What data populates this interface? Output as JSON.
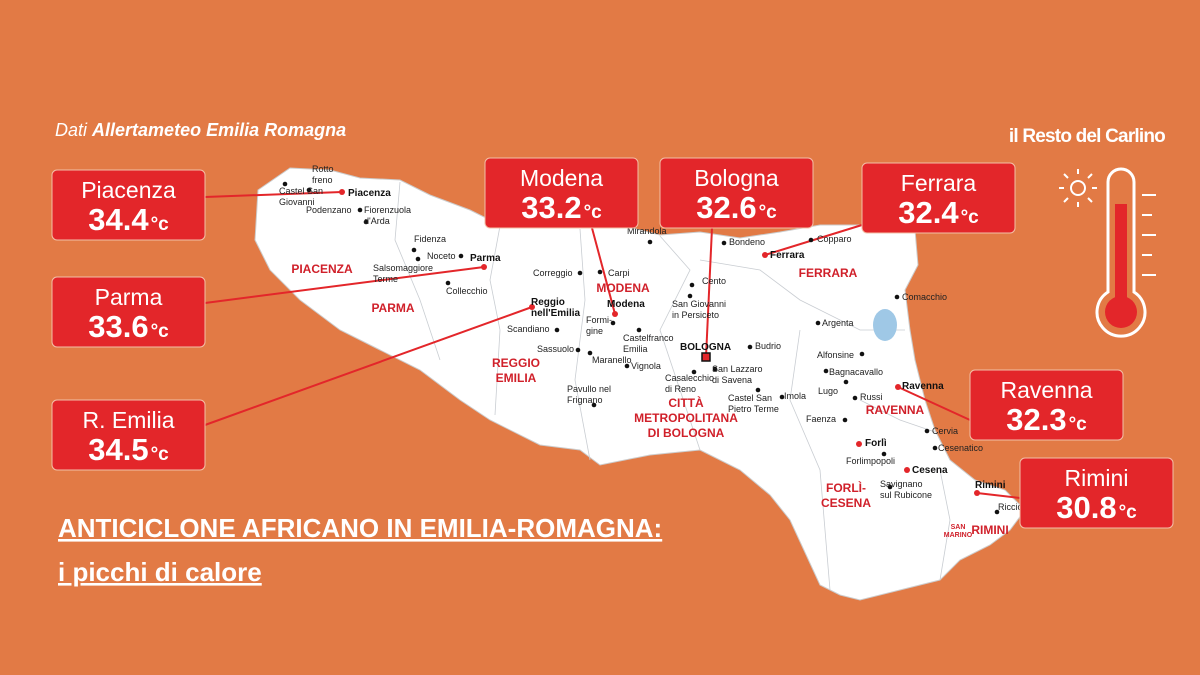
{
  "source": {
    "prefix": "Dati",
    "name": "Allertameteo Emilia Romagna"
  },
  "brand": "il Resto del Carlino",
  "headline": {
    "line1": "ANTICICLONE AFRICANO IN EMILIA-ROMAGNA:",
    "line2": "i picchi di calore"
  },
  "unit": "°c",
  "readings": [
    {
      "city": "Piacenza",
      "value": 34.4
    },
    {
      "city": "Parma",
      "value": 33.6
    },
    {
      "city": "R. Emilia",
      "value": 34.5
    },
    {
      "city": "Modena",
      "value": 33.2
    },
    {
      "city": "Bologna",
      "value": 32.6
    },
    {
      "city": "Ferrara",
      "value": 32.4
    },
    {
      "city": "Ravenna",
      "value": 32.3
    },
    {
      "city": "Rimini",
      "value": 30.8
    }
  ],
  "provinces": [
    {
      "lines": [
        "PIACENZA"
      ]
    },
    {
      "lines": [
        "PARMA"
      ]
    },
    {
      "lines": [
        "REGGIO",
        "EMILIA"
      ]
    },
    {
      "lines": [
        "MODENA"
      ]
    },
    {
      "lines": [
        "FERRARA"
      ]
    },
    {
      "lines": [
        "CITTÀ",
        "METROPOLITANA",
        "DI BOLOGNA"
      ]
    },
    {
      "lines": [
        "RAVENNA"
      ]
    },
    {
      "lines": [
        "FORLÌ-",
        "CESENA"
      ]
    },
    {
      "lines": [
        "RIMINI"
      ]
    },
    {
      "lines": [
        "SAN",
        "MARINO"
      ]
    }
  ],
  "towns": [
    {
      "lines": [
        "Rotto",
        "freno"
      ]
    },
    {
      "lines": [
        "Castel San",
        "Giovanni"
      ]
    },
    {
      "lines": [
        "Piacenza"
      ]
    },
    {
      "lines": [
        "Podenzano"
      ]
    },
    {
      "lines": [
        "Fiorenzuola",
        "d'Arda"
      ]
    },
    {
      "lines": [
        "Fidenza"
      ]
    },
    {
      "lines": [
        "Noceto"
      ]
    },
    {
      "lines": [
        "Salsomaggiore",
        "Terme"
      ]
    },
    {
      "lines": [
        "Parma"
      ]
    },
    {
      "lines": [
        "Collecchio"
      ]
    },
    {
      "lines": [
        "Correggio"
      ]
    },
    {
      "lines": [
        "Carpi"
      ]
    },
    {
      "lines": [
        "Mirandola"
      ]
    },
    {
      "lines": [
        "Bondeno"
      ]
    },
    {
      "lines": [
        "Copparo"
      ]
    },
    {
      "lines": [
        "Ferrara"
      ]
    },
    {
      "lines": [
        "Reggio",
        "nell'Emilia"
      ]
    },
    {
      "lines": [
        "Scandiano"
      ]
    },
    {
      "lines": [
        "Modena"
      ]
    },
    {
      "lines": [
        "Formi-",
        "gine"
      ]
    },
    {
      "lines": [
        "Castelfranco",
        "Emilia"
      ]
    },
    {
      "lines": [
        "Cento"
      ]
    },
    {
      "lines": [
        "San Giovanni",
        "in Persiceto"
      ]
    },
    {
      "lines": [
        "BOLOGNA"
      ]
    },
    {
      "lines": [
        "Budrio"
      ]
    },
    {
      "lines": [
        "Sassuolo"
      ]
    },
    {
      "lines": [
        "Maranello"
      ]
    },
    {
      "lines": [
        "Vignola"
      ]
    },
    {
      "lines": [
        "Casalecchio",
        "di Reno"
      ]
    },
    {
      "lines": [
        "San Lazzaro",
        "di Savena"
      ]
    },
    {
      "lines": [
        "Castel San",
        "Pietro Terme"
      ]
    },
    {
      "lines": [
        "Imola"
      ]
    },
    {
      "lines": [
        "Pavullo nel",
        "Frignano"
      ]
    },
    {
      "lines": [
        "Argenta"
      ]
    },
    {
      "lines": [
        "Comacchio"
      ]
    },
    {
      "lines": [
        "Alfonsine"
      ]
    },
    {
      "lines": [
        "Bagnacavallo"
      ]
    },
    {
      "lines": [
        "Lugo"
      ]
    },
    {
      "lines": [
        "Russi"
      ]
    },
    {
      "lines": [
        "Ravenna"
      ]
    },
    {
      "lines": [
        "Faenza"
      ]
    },
    {
      "lines": [
        "Cervia"
      ]
    },
    {
      "lines": [
        "Cesenatico"
      ]
    },
    {
      "lines": [
        "Forlì"
      ]
    },
    {
      "lines": [
        "Forlimpopoli"
      ]
    },
    {
      "lines": [
        "Cesena"
      ]
    },
    {
      "lines": [
        "Savignano",
        "sul Rubicone"
      ]
    },
    {
      "lines": [
        "Rimini"
      ]
    },
    {
      "lines": [
        "Riccione"
      ]
    }
  ]
}
